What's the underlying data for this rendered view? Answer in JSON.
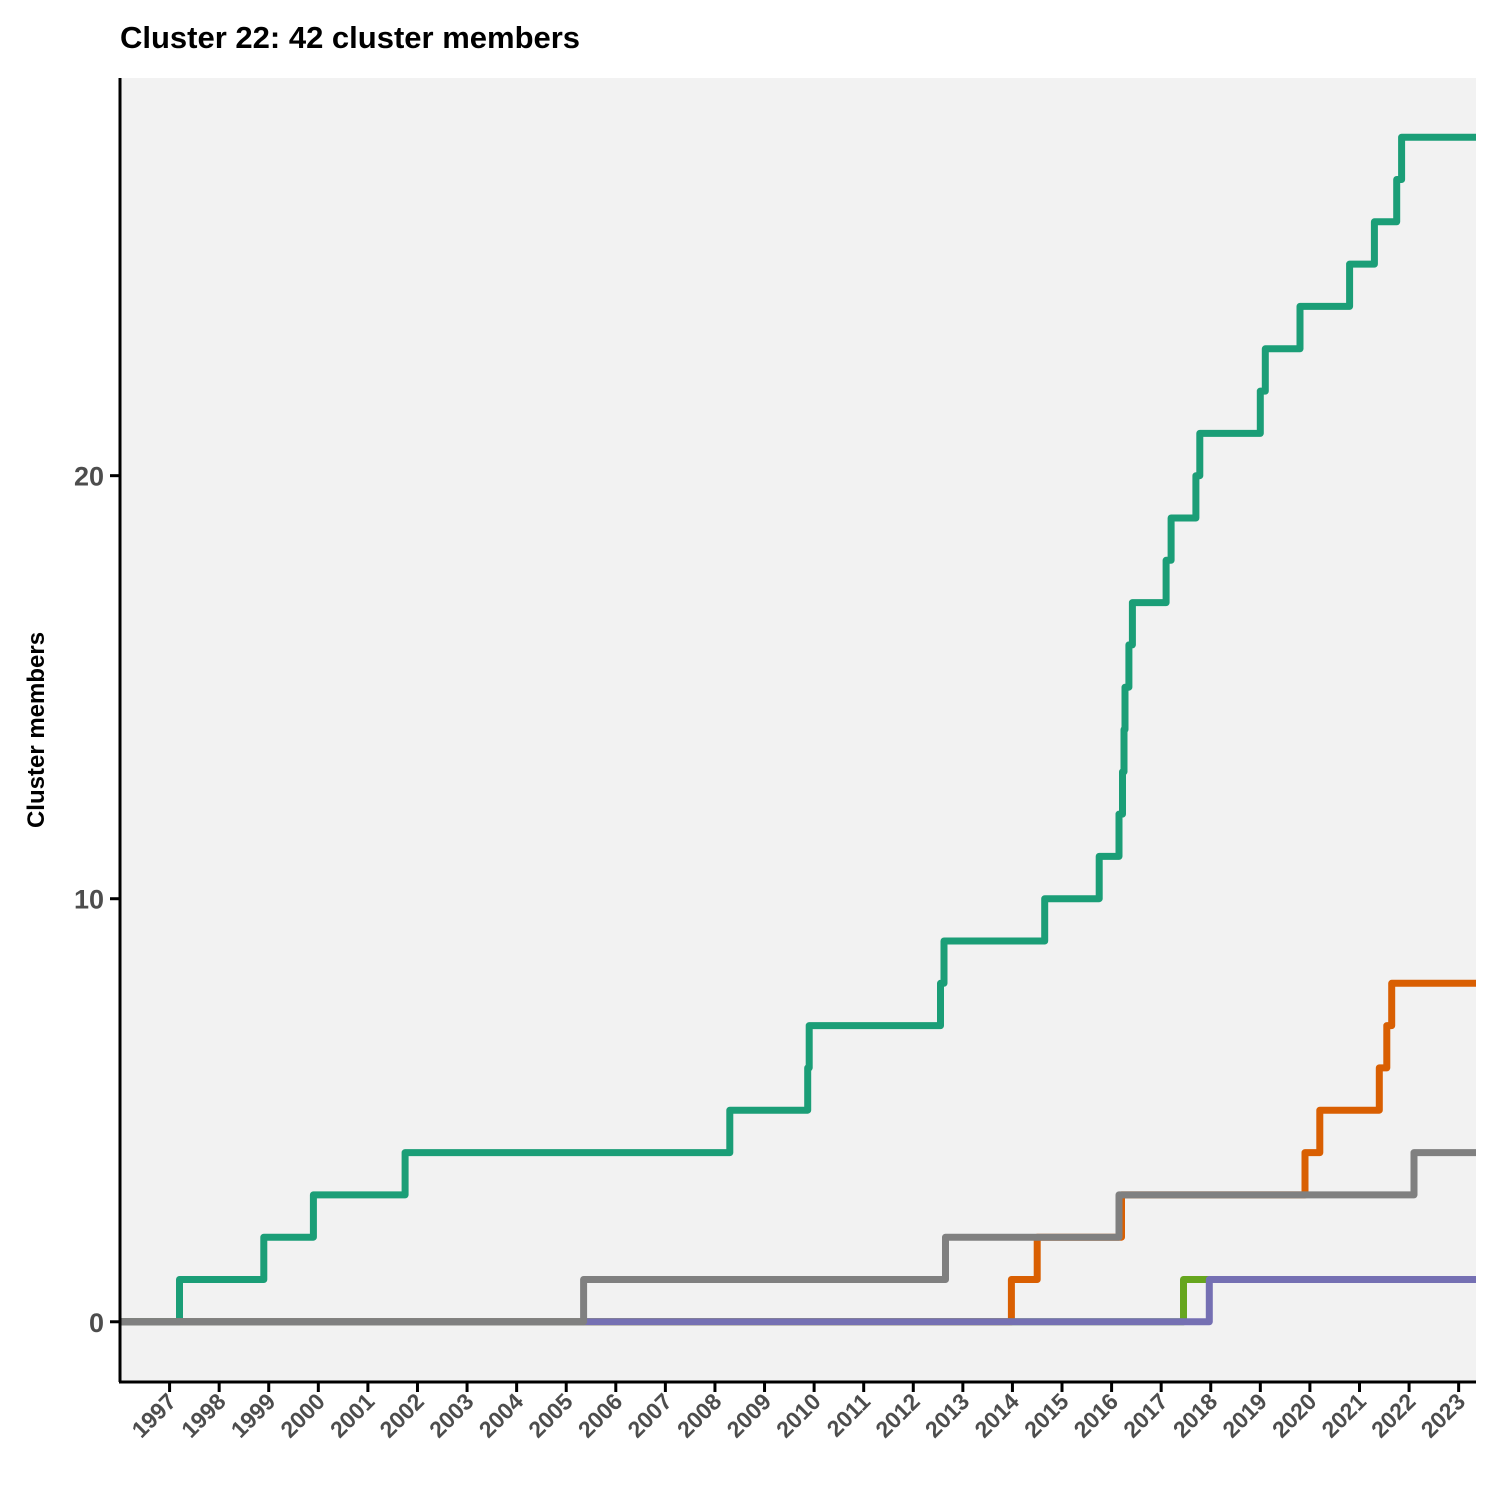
{
  "chart_data": {
    "type": "line",
    "step": true,
    "title": "Cluster 22: 42 cluster members",
    "xlabel": "",
    "ylabel": "Cluster members",
    "xlim": [
      1996.0,
      2023.35
    ],
    "ylim": [
      -1.4,
      29.4
    ],
    "yticks": [
      0,
      10,
      20
    ],
    "xticks": [
      "1997",
      "1998",
      "1999",
      "2000",
      "2001",
      "2002",
      "2003",
      "2004",
      "2005",
      "2006",
      "2007",
      "2008",
      "2009",
      "2010",
      "2011",
      "2012",
      "2013",
      "2014",
      "2015",
      "2016",
      "2017",
      "2018",
      "2019",
      "2020",
      "2021",
      "2022",
      "2023"
    ],
    "grid": false,
    "legend": "none",
    "background": "#f2f2f2",
    "series": [
      {
        "color": "#1b9e77",
        "points": [
          [
            1996.0,
            0
          ],
          [
            1997.2,
            1
          ],
          [
            1998.9,
            2
          ],
          [
            1999.9,
            3
          ],
          [
            2001.75,
            4
          ],
          [
            2008.3,
            5
          ],
          [
            2009.87,
            6
          ],
          [
            2009.9,
            7
          ],
          [
            2012.55,
            8
          ],
          [
            2012.62,
            9
          ],
          [
            2014.65,
            10
          ],
          [
            2015.75,
            11
          ],
          [
            2016.15,
            12
          ],
          [
            2016.22,
            13
          ],
          [
            2016.25,
            14
          ],
          [
            2016.27,
            15
          ],
          [
            2016.35,
            16
          ],
          [
            2016.42,
            17
          ],
          [
            2017.1,
            18
          ],
          [
            2017.2,
            19
          ],
          [
            2017.7,
            20
          ],
          [
            2017.78,
            21
          ],
          [
            2019.0,
            22
          ],
          [
            2019.1,
            23
          ],
          [
            2019.8,
            24
          ],
          [
            2020.8,
            25
          ],
          [
            2021.3,
            26
          ],
          [
            2021.75,
            27
          ],
          [
            2021.85,
            28
          ],
          [
            2023.35,
            28
          ]
        ]
      },
      {
        "color": "#d95f02",
        "points": [
          [
            1996.0,
            0
          ],
          [
            2013.98,
            1
          ],
          [
            2014.5,
            2
          ],
          [
            2016.2,
            3
          ],
          [
            2019.9,
            4
          ],
          [
            2020.2,
            5
          ],
          [
            2021.4,
            6
          ],
          [
            2021.55,
            7
          ],
          [
            2021.65,
            8
          ],
          [
            2023.35,
            8
          ]
        ]
      },
      {
        "color": "#66a61e",
        "points": [
          [
            1996.0,
            0
          ],
          [
            2017.45,
            1
          ],
          [
            2023.35,
            1
          ]
        ]
      },
      {
        "color": "#7570b3",
        "points": [
          [
            1996.0,
            0
          ],
          [
            2017.97,
            1
          ],
          [
            2023.35,
            1
          ]
        ]
      },
      {
        "color": "#808080",
        "points": [
          [
            1996.0,
            0
          ],
          [
            2005.35,
            1
          ],
          [
            2012.65,
            2
          ],
          [
            2016.15,
            3
          ],
          [
            2022.1,
            4
          ],
          [
            2023.35,
            4
          ]
        ]
      }
    ]
  }
}
